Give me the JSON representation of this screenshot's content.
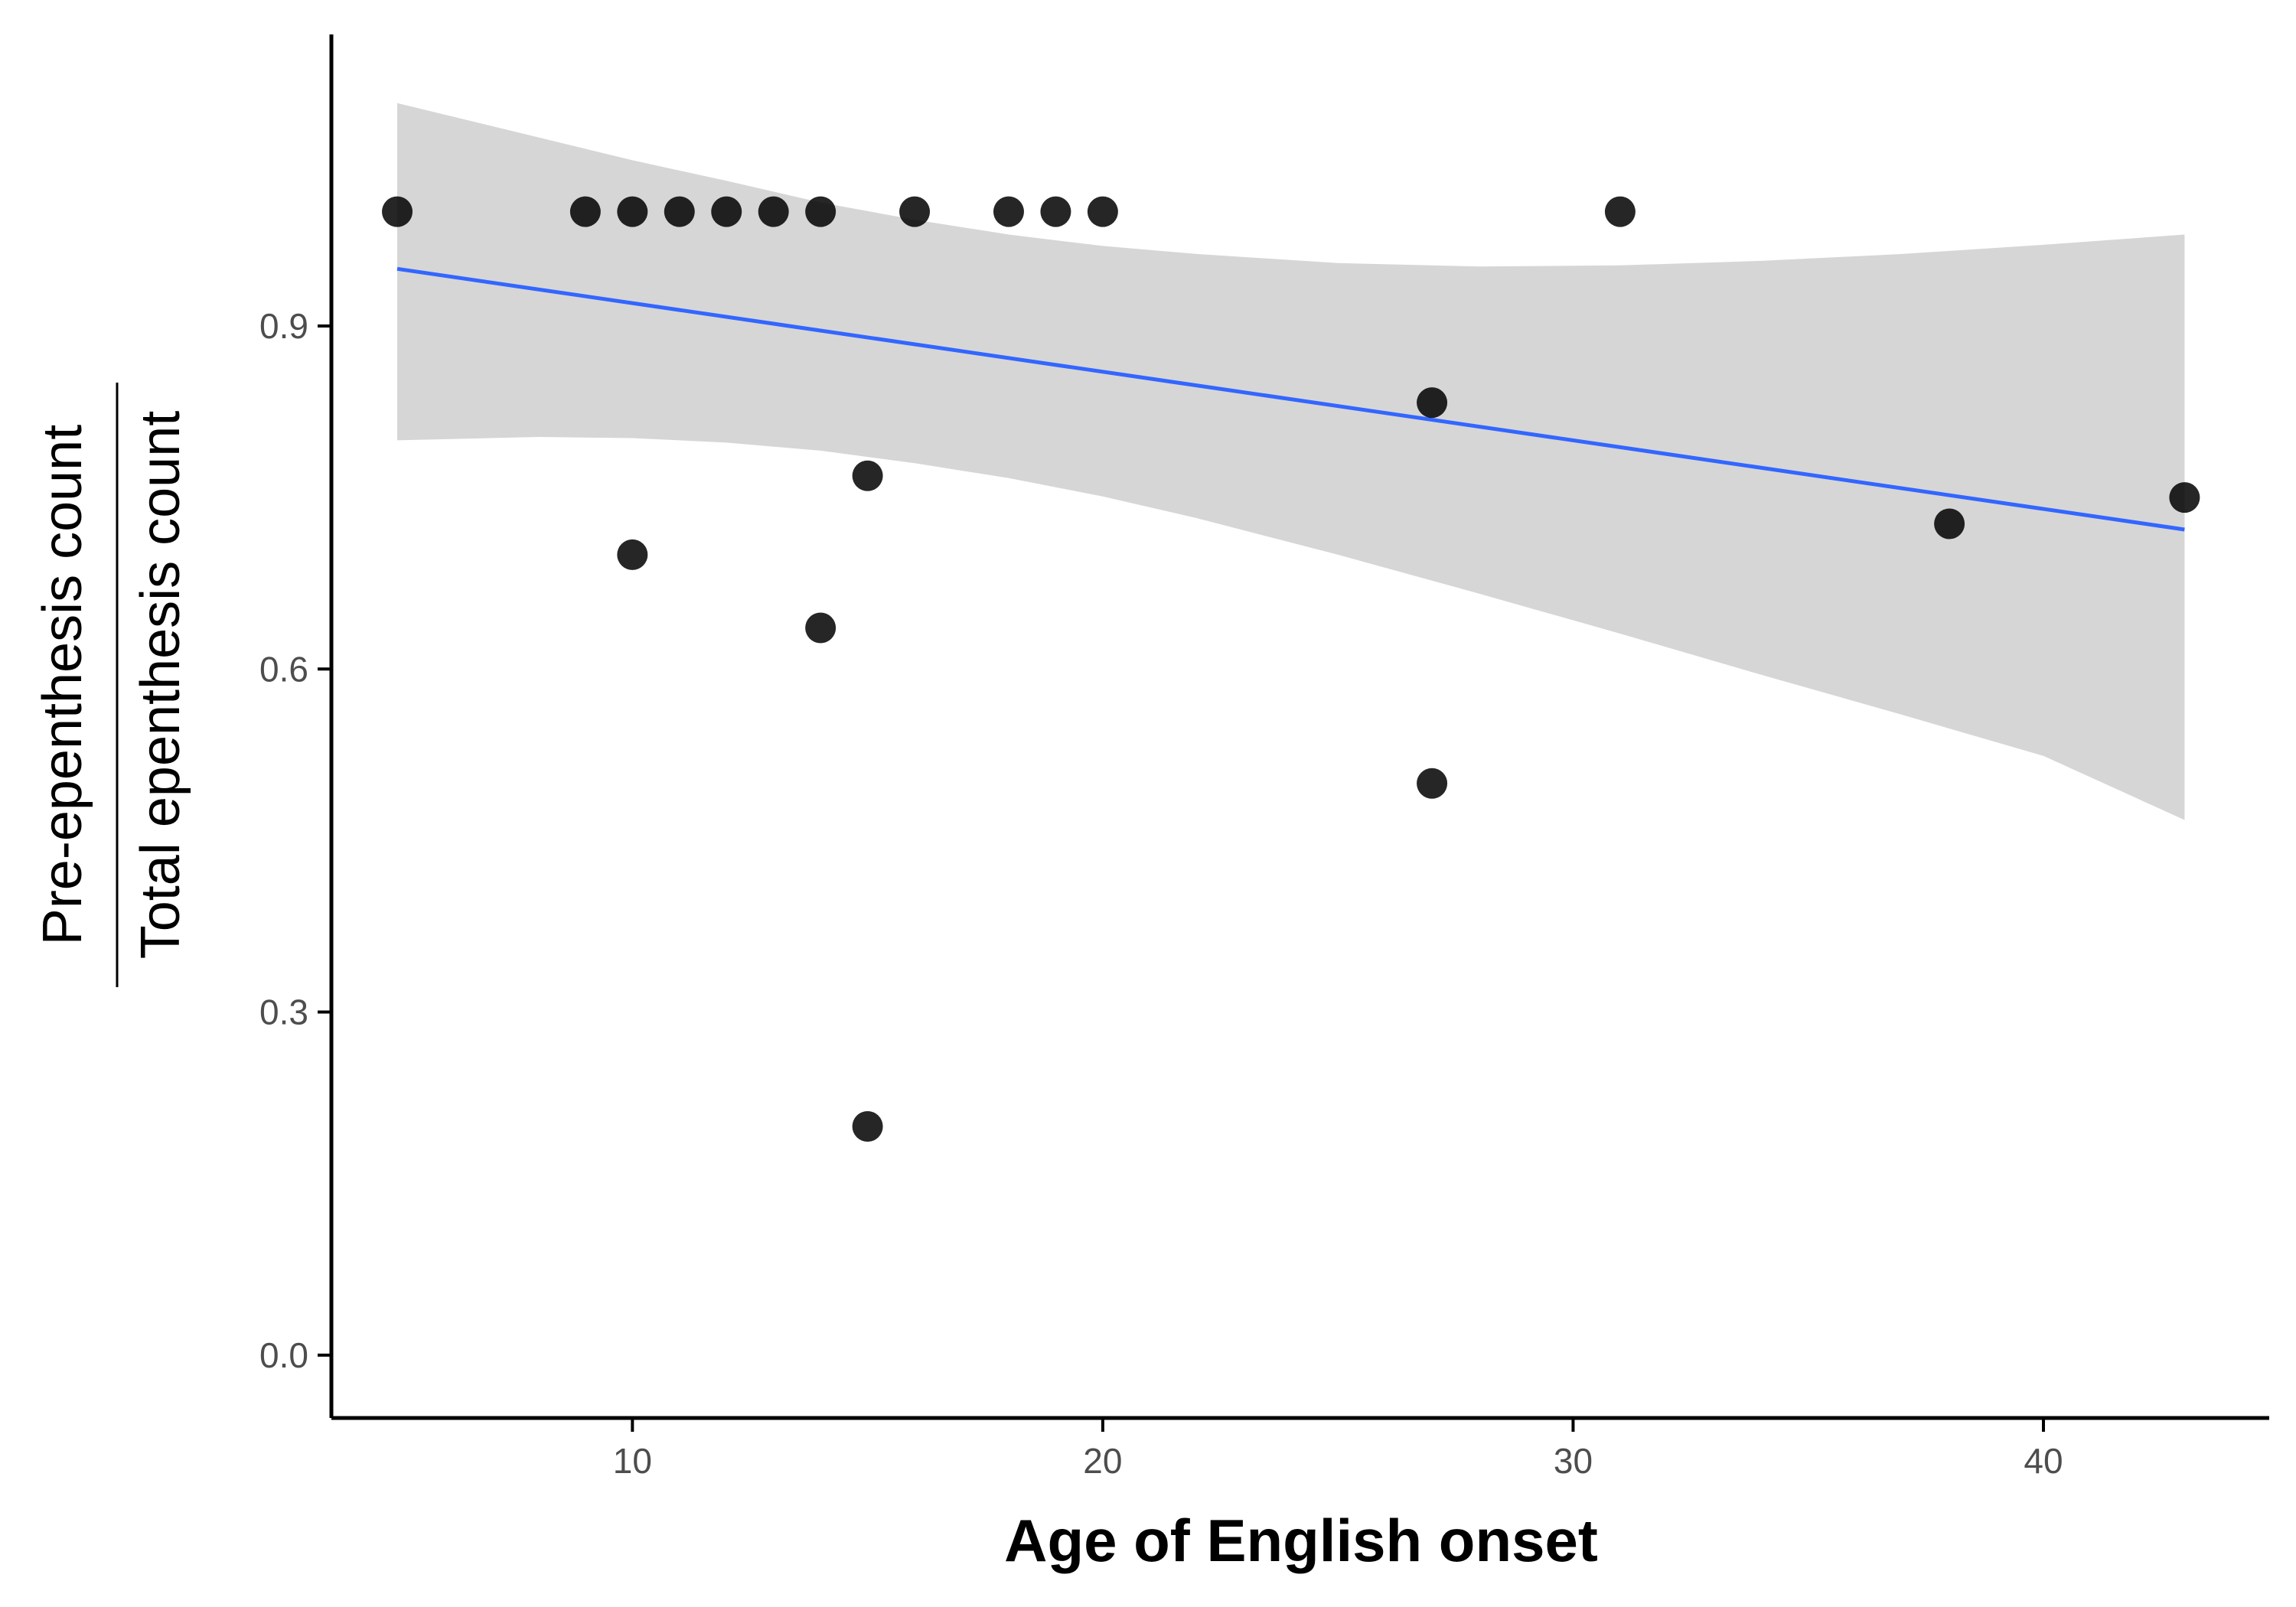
{
  "chart_data": {
    "type": "scatter",
    "xlabel": "Age of English onset",
    "ylabel_numerator": "Pre-epenthesis count",
    "ylabel_denominator": "Total epenthesis count",
    "xlim": [
      3.6,
      44.8
    ],
    "ylim": [
      -0.055,
      1.155
    ],
    "x_ticks": [
      10,
      20,
      30,
      40
    ],
    "x_tick_labels": [
      "10",
      "20",
      "30",
      "40"
    ],
    "y_ticks": [
      0.0,
      0.3,
      0.6,
      0.9
    ],
    "y_tick_labels": [
      "0.0",
      "0.3",
      "0.6",
      "0.9"
    ],
    "grid": false,
    "points": [
      {
        "x": 5,
        "y": 1.0
      },
      {
        "x": 9,
        "y": 1.0
      },
      {
        "x": 10,
        "y": 1.0
      },
      {
        "x": 11,
        "y": 1.0
      },
      {
        "x": 12,
        "y": 1.0
      },
      {
        "x": 13,
        "y": 1.0
      },
      {
        "x": 14,
        "y": 1.0
      },
      {
        "x": 16,
        "y": 1.0
      },
      {
        "x": 18,
        "y": 1.0
      },
      {
        "x": 19,
        "y": 1.0
      },
      {
        "x": 20,
        "y": 1.0
      },
      {
        "x": 31,
        "y": 1.0
      },
      {
        "x": 27,
        "y": 0.833
      },
      {
        "x": 15,
        "y": 0.769
      },
      {
        "x": 43,
        "y": 0.75
      },
      {
        "x": 38,
        "y": 0.727
      },
      {
        "x": 10,
        "y": 0.7
      },
      {
        "x": 14,
        "y": 0.636
      },
      {
        "x": 27,
        "y": 0.5
      },
      {
        "x": 15,
        "y": 0.2
      }
    ],
    "fit_line": {
      "x": [
        5,
        43
      ],
      "y": [
        0.95,
        0.722
      ]
    },
    "confidence_band": {
      "x": [
        5,
        8,
        10,
        12,
        14,
        16,
        18,
        20,
        22,
        25,
        28,
        31,
        34,
        37,
        40,
        43
      ],
      "upper": [
        1.095,
        1.065,
        1.045,
        1.027,
        1.008,
        0.993,
        0.98,
        0.97,
        0.963,
        0.955,
        0.952,
        0.953,
        0.957,
        0.963,
        0.971,
        0.98
      ],
      "lower": [
        0.8,
        0.803,
        0.802,
        0.798,
        0.791,
        0.78,
        0.767,
        0.751,
        0.732,
        0.7,
        0.666,
        0.631,
        0.595,
        0.56,
        0.524,
        0.468
      ]
    },
    "colors": {
      "points": "#000000",
      "fit_line": "#3366ff",
      "band": "#d6d6d6",
      "axis": "#000000",
      "tick_label": "#4d4d4d"
    }
  }
}
